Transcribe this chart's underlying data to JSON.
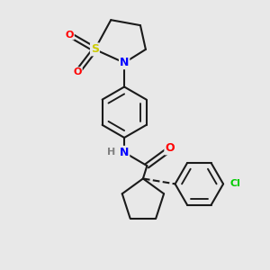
{
  "bg_color": "#e8e8e8",
  "bond_color": "#1a1a1a",
  "atom_colors": {
    "N": "#0000ff",
    "O": "#ff0000",
    "S": "#cccc00",
    "Cl": "#00cc00",
    "H": "#808080",
    "C": "#1a1a1a"
  },
  "bond_width": 1.5,
  "figsize": [
    3.0,
    3.0
  ],
  "dpi": 100
}
